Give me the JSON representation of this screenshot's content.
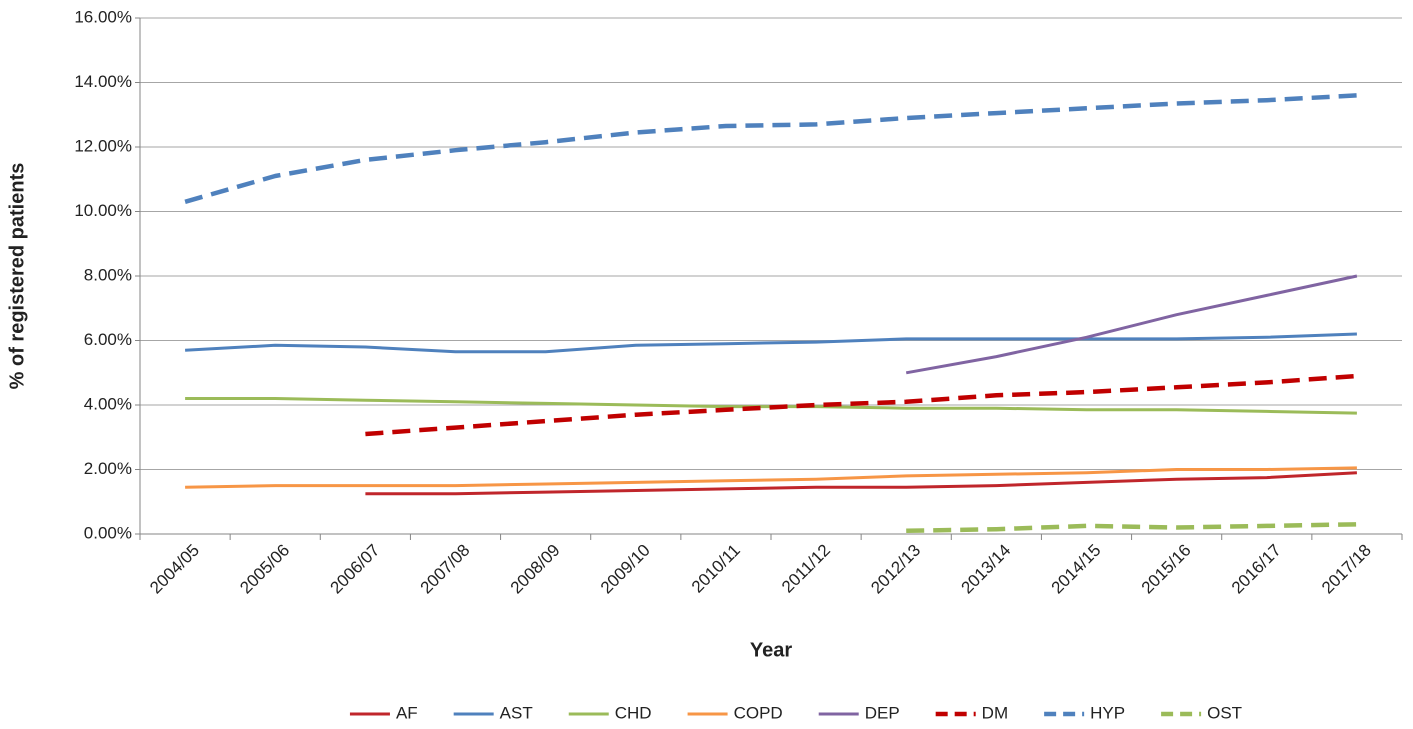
{
  "chart_data": {
    "type": "line",
    "x_label": "Year",
    "y_label": "% of registered patients",
    "categories": [
      "2004/05",
      "2005/06",
      "2006/07",
      "2007/08",
      "2008/09",
      "2009/10",
      "2010/11",
      "2011/12",
      "2012/13",
      "2013/14",
      "2014/15",
      "2015/16",
      "2016/17",
      "2017/18"
    ],
    "ylim": [
      0,
      16
    ],
    "yticks": [
      {
        "value": 0,
        "label": "0.00%"
      },
      {
        "value": 2,
        "label": "2.00%"
      },
      {
        "value": 4,
        "label": "4.00%"
      },
      {
        "value": 6,
        "label": "6.00%"
      },
      {
        "value": 8,
        "label": "8.00%"
      },
      {
        "value": 10,
        "label": "10.00%"
      },
      {
        "value": 12,
        "label": "12.00%"
      },
      {
        "value": 14,
        "label": "14.00%"
      },
      {
        "value": 16,
        "label": "16.00%"
      }
    ],
    "grid": true,
    "legend": "bottom",
    "series": [
      {
        "name": "AF",
        "color": "#c0262b",
        "dashed": false,
        "values": [
          null,
          null,
          1.25,
          1.25,
          1.3,
          1.35,
          1.4,
          1.45,
          1.45,
          1.5,
          1.6,
          1.7,
          1.75,
          1.9
        ]
      },
      {
        "name": "AST",
        "color": "#4f81bd",
        "dashed": false,
        "values": [
          5.7,
          5.85,
          5.8,
          5.65,
          5.65,
          5.85,
          5.9,
          5.95,
          6.05,
          6.05,
          6.05,
          6.05,
          6.1,
          6.2
        ]
      },
      {
        "name": "CHD",
        "color": "#9bbb59",
        "dashed": false,
        "values": [
          4.2,
          4.2,
          4.15,
          4.1,
          4.05,
          4.0,
          3.95,
          3.95,
          3.9,
          3.9,
          3.85,
          3.85,
          3.8,
          3.75
        ]
      },
      {
        "name": "COPD",
        "color": "#f79646",
        "dashed": false,
        "values": [
          1.45,
          1.5,
          1.5,
          1.5,
          1.55,
          1.6,
          1.65,
          1.7,
          1.8,
          1.85,
          1.9,
          2.0,
          2.0,
          2.05
        ]
      },
      {
        "name": "DEP",
        "color": "#8064a2",
        "dashed": false,
        "values": [
          null,
          null,
          null,
          null,
          null,
          null,
          null,
          null,
          5.0,
          5.5,
          6.1,
          6.8,
          7.4,
          8.0
        ]
      },
      {
        "name": "DM",
        "color": "#c00000",
        "dashed": true,
        "values": [
          null,
          null,
          3.1,
          3.3,
          3.5,
          3.7,
          3.85,
          4.0,
          4.1,
          4.3,
          4.4,
          4.55,
          4.7,
          4.9
        ]
      },
      {
        "name": "HYP",
        "color": "#4f81bd",
        "dashed": true,
        "values": [
          10.3,
          11.1,
          11.6,
          11.9,
          12.15,
          12.45,
          12.65,
          12.7,
          12.9,
          13.05,
          13.2,
          13.35,
          13.45,
          13.6
        ]
      },
      {
        "name": "OST",
        "color": "#9bbb59",
        "dashed": true,
        "values": [
          null,
          null,
          null,
          null,
          null,
          null,
          null,
          null,
          0.1,
          0.15,
          0.25,
          0.2,
          0.25,
          0.3
        ]
      }
    ]
  }
}
